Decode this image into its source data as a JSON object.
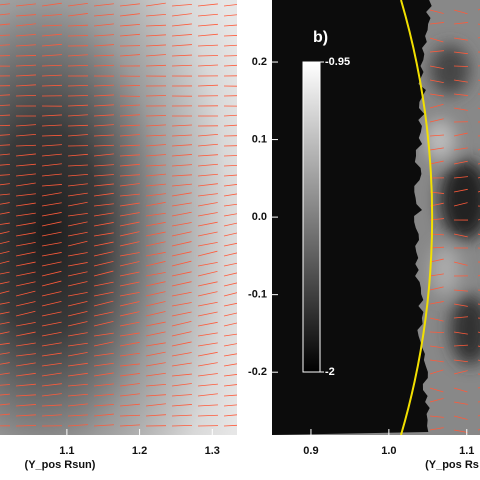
{
  "chart_data": [
    {
      "type": "image",
      "x_label": "(Y_pos Rsun)",
      "xlim": [
        1.008,
        1.334
      ],
      "xticks": [
        1.1,
        1.2,
        1.3
      ]
    },
    {
      "type": "image",
      "panel_label": "b)",
      "x_label": "(Y_pos Rs",
      "xlim": [
        0.85,
        1.117
      ],
      "xticks": [
        0.9,
        {
          "value": 1,
          "label": "1.0"
        },
        1.1
      ],
      "ylim": [
        -0.281,
        0.28
      ],
      "yticks": [
        0.2,
        0.1,
        {
          "value": 0,
          "label": "0.0"
        },
        -0.1,
        -0.2
      ],
      "clim": [
        -2,
        -0.95
      ],
      "cticks": [
        -0.95,
        -2
      ]
    }
  ]
}
